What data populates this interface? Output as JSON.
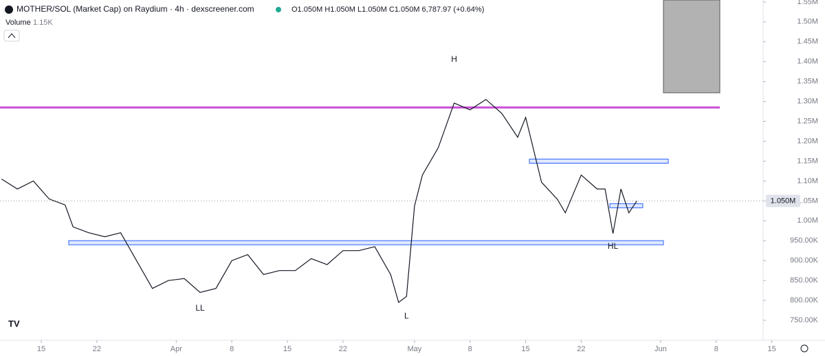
{
  "chart_data": {
    "type": "line",
    "title": "MOTHER/SOL (Market Cap) on Raydium · 4h · dexscreener.com",
    "ohlc_text": "O1.050M H1.050M L1.050M C1.050M 6,787.97 (+0.64%)",
    "volume_label": "Volume",
    "volume_value": "1.15K",
    "current_price_label": "1.050M",
    "current_price": 1050000,
    "series": [
      {
        "color": "#131722",
        "x": [
          "Mar 10",
          "Mar 12",
          "Mar 14",
          "Mar 16",
          "Mar 18",
          "Mar 19",
          "Mar 21",
          "Mar 23",
          "Mar 25",
          "Mar 27",
          "Mar 29",
          "Mar 31",
          "Apr 2",
          "Apr 4",
          "Apr 6",
          "Apr 8",
          "Apr 10",
          "Apr 12",
          "Apr 14",
          "Apr 16",
          "Apr 18",
          "Apr 20",
          "Apr 22",
          "Apr 24",
          "Apr 26",
          "Apr 28",
          "Apr 29",
          "Apr 30",
          "May 1",
          "May 2",
          "May 4",
          "May 6",
          "May 8",
          "May 10",
          "May 12",
          "May 14",
          "May 15",
          "May 17",
          "May 19",
          "May 20",
          "May 22",
          "May 24",
          "May 25",
          "May 26",
          "May 27",
          "May 28",
          "May 29"
        ],
        "values": [
          1105000,
          1080000,
          1100000,
          1055000,
          1040000,
          985000,
          970000,
          960000,
          970000,
          900000,
          830000,
          850000,
          855000,
          820000,
          830000,
          900000,
          915000,
          865000,
          875000,
          875000,
          905000,
          890000,
          925000,
          925000,
          935000,
          865000,
          795000,
          810000,
          1037000,
          1115000,
          1184000,
          1296000,
          1279000,
          1305000,
          1270000,
          1210000,
          1260000,
          1097000,
          1054000,
          1020000,
          1115000,
          1080000,
          1080000,
          968000,
          1080000,
          1020000,
          1050000
        ]
      }
    ],
    "levels": [
      {
        "value": 1285000,
        "color": "#c94fd6"
      },
      {
        "value": 945000,
        "color": "#2962ff"
      },
      {
        "value": 1150000,
        "color": "#2962ff"
      },
      {
        "value": 1038000,
        "color": "#2962ff"
      }
    ],
    "annotations": [
      {
        "text": "H",
        "x": "May 6",
        "y": 1405000
      },
      {
        "text": "LL",
        "x": "Apr 4",
        "y": 780000
      },
      {
        "text": "L",
        "x": "Apr 30",
        "y": 760000
      },
      {
        "text": "HL",
        "x": "May 26",
        "y": 935000
      }
    ],
    "ylim": [
      700000,
      1555000
    ],
    "yticks": [
      {
        "value": 750000,
        "label": "750.00K"
      },
      {
        "value": 800000,
        "label": "800.00K"
      },
      {
        "value": 850000,
        "label": "850.00K"
      },
      {
        "value": 900000,
        "label": "900.00K"
      },
      {
        "value": 950000,
        "label": "950.00K"
      },
      {
        "value": 1000000,
        "label": "1.00M"
      },
      {
        "value": 1050000,
        "label": "1.05M"
      },
      {
        "value": 1100000,
        "label": "1.10M"
      },
      {
        "value": 1150000,
        "label": "1.15M"
      },
      {
        "value": 1200000,
        "label": "1.20M"
      },
      {
        "value": 1250000,
        "label": "1.25M"
      },
      {
        "value": 1300000,
        "label": "1.30M"
      },
      {
        "value": 1350000,
        "label": "1.35M"
      },
      {
        "value": 1400000,
        "label": "1.40M"
      },
      {
        "value": 1450000,
        "label": "1.45M"
      },
      {
        "value": 1500000,
        "label": "1.50M"
      },
      {
        "value": 1550000,
        "label": "1.55M"
      }
    ],
    "xticks": [
      {
        "value": "Mar 15",
        "label": "15"
      },
      {
        "value": "Mar 22",
        "label": "22"
      },
      {
        "value": "Apr 1",
        "label": "Apr"
      },
      {
        "value": "Apr 8",
        "label": "8"
      },
      {
        "value": "Apr 15",
        "label": "15"
      },
      {
        "value": "Apr 22",
        "label": "22"
      },
      {
        "value": "May 1",
        "label": "May"
      },
      {
        "value": "May 8",
        "label": "8"
      },
      {
        "value": "May 15",
        "label": "15"
      },
      {
        "value": "May 22",
        "label": "22"
      },
      {
        "value": "Jun 1",
        "label": "Jun"
      },
      {
        "value": "Jun 8",
        "label": "8"
      },
      {
        "value": "Jun 15",
        "label": "15"
      }
    ]
  }
}
